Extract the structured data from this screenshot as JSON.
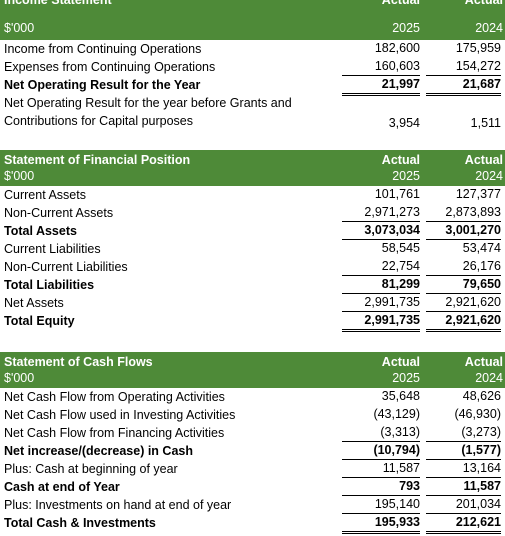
{
  "income": {
    "title": "Income Statement",
    "unit": "$'000",
    "col_actual": "Actual",
    "col_2025": "2025",
    "col_2024": "2024",
    "rows": [
      {
        "label": "Income from Continuing Operations",
        "v2025": "182,600",
        "v2024": "175,959"
      },
      {
        "label": "Expenses from Continuing Operations",
        "v2025": "160,603",
        "v2024": "154,272"
      },
      {
        "label": "Net Operating Result for the Year",
        "v2025": "21,997",
        "v2024": "21,687"
      },
      {
        "label": "Net Operating Result for the year before Grants and",
        "v2025": "",
        "v2024": ""
      },
      {
        "label": "Contributions for Capital purposes",
        "v2025": "3,954",
        "v2024": "1,511"
      }
    ]
  },
  "position": {
    "title": "Statement of Financial Position",
    "unit": "$'000",
    "col_actual": "Actual",
    "col_2025": "2025",
    "col_2024": "2024",
    "rows": [
      {
        "label": "Current Assets",
        "v2025": "101,761",
        "v2024": "127,377"
      },
      {
        "label": "Non-Current Assets",
        "v2025": "2,971,273",
        "v2024": "2,873,893"
      },
      {
        "label": "Total Assets",
        "v2025": "3,073,034",
        "v2024": "3,001,270"
      },
      {
        "label": "Current Liabilities",
        "v2025": "58,545",
        "v2024": "53,474"
      },
      {
        "label": "Non-Current Liabilities",
        "v2025": "22,754",
        "v2024": "26,176"
      },
      {
        "label": "Total Liabilities",
        "v2025": "81,299",
        "v2024": "79,650"
      },
      {
        "label": "Net Assets",
        "v2025": "2,991,735",
        "v2024": "2,921,620"
      },
      {
        "label": "Total Equity",
        "v2025": "2,991,735",
        "v2024": "2,921,620"
      }
    ]
  },
  "cashflow": {
    "title": "Statement of Cash Flows",
    "unit": "$'000",
    "col_actual": "Actual",
    "col_2025": "2025",
    "col_2024": "2024",
    "rows": [
      {
        "label": "Net Cash Flow from Operating Activities",
        "v2025": "35,648",
        "v2024": "48,626"
      },
      {
        "label": "Net Cash Flow used in Investing Activities",
        "v2025": "(43,129)",
        "v2024": "(46,930)"
      },
      {
        "label": "Net Cash Flow from Financing Activities",
        "v2025": "(3,313)",
        "v2024": "(3,273)"
      },
      {
        "label": "Net increase/(decrease) in Cash",
        "v2025": "(10,794)",
        "v2024": "(1,577)"
      },
      {
        "label": "Plus: Cash at beginning of year",
        "v2025": "11,587",
        "v2024": "13,164"
      },
      {
        "label": "Cash at end of Year",
        "v2025": "793",
        "v2024": "11,587"
      },
      {
        "label": "Plus: Investments on hand at end of year",
        "v2025": "195,140",
        "v2024": "201,034"
      },
      {
        "label": "Total Cash & Investments",
        "v2025": "195,933",
        "v2024": "212,621"
      }
    ]
  }
}
